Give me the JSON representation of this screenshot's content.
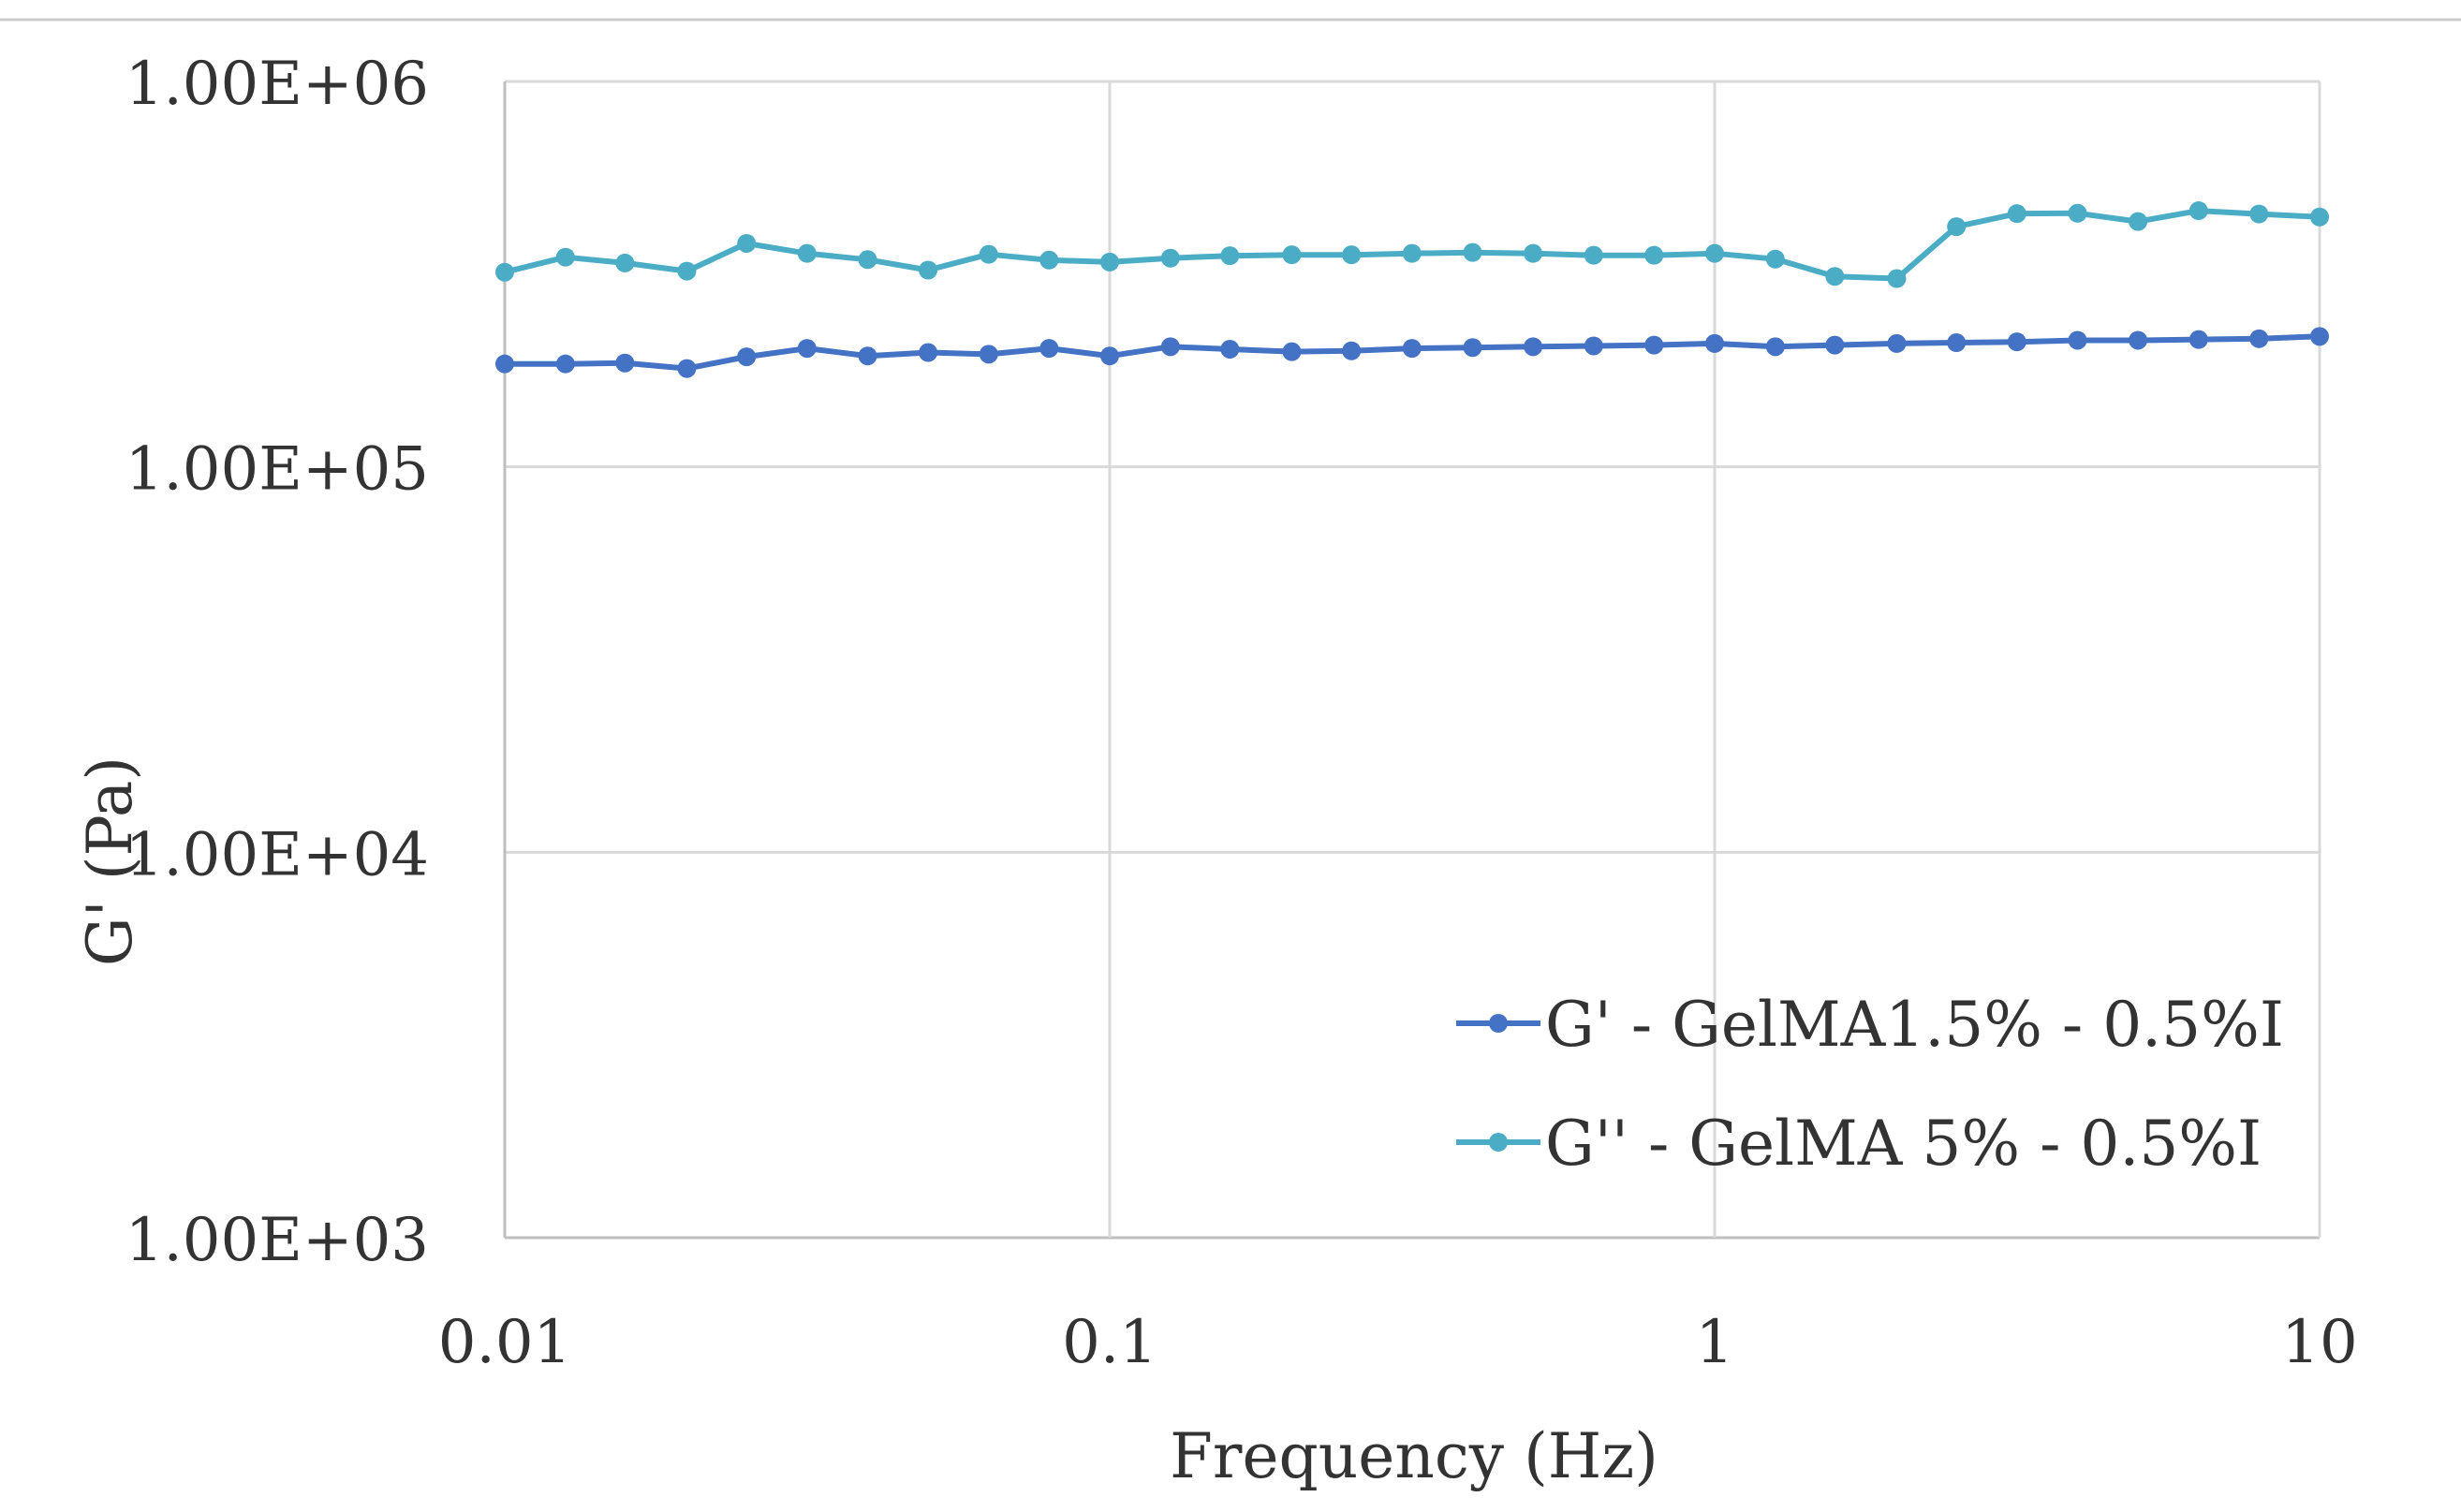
{
  "chart_data": {
    "type": "line",
    "title": "",
    "xlabel": "Frequency (Hz)",
    "ylabel": "G' (Pa)",
    "xscale": "log",
    "yscale": "log",
    "xlim": [
      0.01,
      10
    ],
    "ylim": [
      1000,
      1000000
    ],
    "x_ticks": [
      {
        "value": 0.01,
        "label": "0.01"
      },
      {
        "value": 0.1,
        "label": "0.1"
      },
      {
        "value": 1,
        "label": "1"
      },
      {
        "value": 10,
        "label": "10"
      }
    ],
    "y_ticks": [
      {
        "value": 1000,
        "label": "1.00E+03"
      },
      {
        "value": 10000,
        "label": "1.00E+04"
      },
      {
        "value": 100000,
        "label": "1.00E+05"
      },
      {
        "value": 1000000,
        "label": "1.00E+06"
      }
    ],
    "grid": true,
    "legend_position": "bottom-right",
    "x": [
      0.01,
      0.0126,
      0.0158,
      0.02,
      0.0251,
      0.0316,
      0.0398,
      0.0501,
      0.0631,
      0.0794,
      0.1,
      0.126,
      0.158,
      0.2,
      0.251,
      0.316,
      0.398,
      0.501,
      0.631,
      0.794,
      1,
      1.26,
      1.58,
      2,
      2.51,
      3.16,
      3.98,
      5.01,
      6.31,
      7.94,
      10
    ],
    "series": [
      {
        "name": "G' - GelMA1.5% - 0.5%I",
        "color": "#4472C4",
        "values": [
          185000,
          185000,
          186000,
          180000,
          193000,
          203000,
          194000,
          198000,
          196000,
          203000,
          194000,
          205000,
          202000,
          199000,
          200000,
          203000,
          204000,
          205000,
          206000,
          207000,
          209000,
          205000,
          207000,
          209000,
          210000,
          211000,
          213000,
          213000,
          214000,
          215000,
          218000
        ]
      },
      {
        "name": "G'' - GelMA 5% - 0.5%I",
        "color": "#4BACC6",
        "values": [
          320000,
          350000,
          338000,
          322000,
          380000,
          358000,
          345000,
          324000,
          356000,
          344000,
          340000,
          348000,
          353000,
          355000,
          355000,
          358000,
          360000,
          358000,
          354000,
          354000,
          358000,
          346000,
          312000,
          308000,
          420000,
          454000,
          455000,
          433000,
          462000,
          453000,
          445000
        ]
      }
    ]
  }
}
